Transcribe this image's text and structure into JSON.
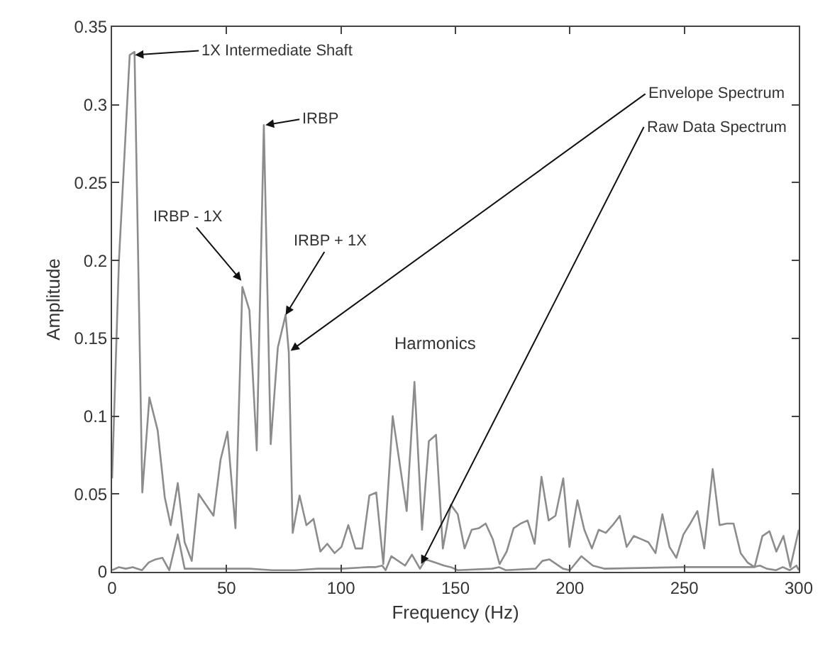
{
  "chart_data": {
    "type": "line",
    "xlabel": "Frequency (Hz)",
    "ylabel": "Amplitude",
    "series": [
      {
        "color": "#8c8c8c",
        "x": [
          0,
          3,
          7.7,
          9.8,
          13.2,
          16.3,
          19.9,
          23,
          25.6,
          28.7,
          31.7,
          34.8,
          37.8,
          44.3,
          47.4,
          50.4,
          53.9,
          56.9,
          60,
          63.2,
          66.3,
          69.3,
          72.4,
          75.8,
          77.2,
          78.9,
          81.9,
          84.9,
          88,
          91,
          94,
          97.2,
          100.2,
          103.2,
          106.3,
          109.3,
          112.4,
          115.4,
          118.5,
          122.6,
          128.7,
          132.1,
          135.4,
          138.4,
          141.5,
          144.5,
          148,
          151,
          154,
          157.1,
          160.2,
          163.2,
          166.3,
          169.3,
          172.4,
          175.4,
          178.5,
          181.5,
          184.6,
          187.6,
          190.7,
          193.7,
          197.1,
          199.8,
          203.3,
          206.3,
          209.6,
          212.6,
          215.7,
          218.7,
          221.8,
          224.8,
          227.9,
          231.1,
          234.3,
          237.4,
          240.4,
          243.5,
          246.5,
          249.6,
          252.6,
          255.7,
          258.7,
          262.4,
          265.4,
          268.5,
          271.5,
          274.6,
          277.6,
          280.7,
          284.1,
          287.2,
          290.2,
          293.3,
          296.3,
          300
        ],
        "values": [
          0.06,
          0.2,
          0.332,
          0.334,
          0.051,
          0.112,
          0.091,
          0.048,
          0.03,
          0.057,
          0.019,
          0.007,
          0.05,
          0.036,
          0.072,
          0.09,
          0.028,
          0.183,
          0.168,
          0.078,
          0.287,
          0.082,
          0.144,
          0.165,
          0.141,
          0.025,
          0.049,
          0.03,
          0.034,
          0.013,
          0.018,
          0.012,
          0.016,
          0.03,
          0.015,
          0.015,
          0.049,
          0.051,
          0.005,
          0.1,
          0.039,
          0.122,
          0.027,
          0.084,
          0.088,
          0.015,
          0.043,
          0.037,
          0.015,
          0.027,
          0.028,
          0.031,
          0.021,
          0.005,
          0.013,
          0.028,
          0.031,
          0.033,
          0.018,
          0.061,
          0.033,
          0.036,
          0.06,
          0.016,
          0.046,
          0.027,
          0.015,
          0.027,
          0.025,
          0.03,
          0.036,
          0.016,
          0.023,
          0.021,
          0.019,
          0.012,
          0.037,
          0.016,
          0.009,
          0.024,
          0.031,
          0.039,
          0.015,
          0.066,
          0.03,
          0.031,
          0.031,
          0.012,
          0.006,
          0.003,
          0.023,
          0.026,
          0.013,
          0.023,
          0.003,
          0.027
        ]
      },
      {
        "color": "#8c8c8c",
        "x": [
          0,
          3,
          6,
          9,
          13,
          16,
          19,
          22,
          25,
          28.7,
          31.7,
          35,
          50,
          60,
          70,
          80,
          90,
          100,
          112,
          115,
          118,
          119.5,
          122,
          128,
          131,
          134.5,
          137,
          141,
          145,
          148,
          151,
          166,
          169,
          172,
          185,
          188,
          191,
          197,
          200,
          205,
          210,
          215,
          250,
          280,
          283,
          286,
          290,
          293,
          296,
          299,
          300
        ],
        "values": [
          0.001,
          0.003,
          0.002,
          0.003,
          0.001,
          0.006,
          0.008,
          0.009,
          0.001,
          0.024,
          0.002,
          0.002,
          0.002,
          0.002,
          0.001,
          0.001,
          0.002,
          0.002,
          0.003,
          0.003,
          0.004,
          0.001,
          0.01,
          0.004,
          0.011,
          0.002,
          0.008,
          0.006,
          0.004,
          0.003,
          0.001,
          0.002,
          0.003,
          0.001,
          0.002,
          0.007,
          0.008,
          0.002,
          0.001,
          0.01,
          0.004,
          0.002,
          0.003,
          0.003,
          0.004,
          0.002,
          0.001,
          0.003,
          0.001,
          0.004,
          0.001
        ]
      }
    ],
    "annotations": [
      {
        "text": "1X Intermediate Shaft",
        "x": 10,
        "y": 0.332
      },
      {
        "text": "IRBP",
        "x": 67,
        "y": 0.287
      },
      {
        "text": "IRBP - 1X",
        "x": 56.5,
        "y": 0.187
      },
      {
        "text": "IRBP + 1X",
        "x": 75.8,
        "y": 0.165
      },
      "Harmonics",
      {
        "text": "Envelope Spectrum",
        "x": 78,
        "y": 0.142
      },
      {
        "text": "Raw Data Spectrum",
        "x": 135,
        "y": 0.005
      }
    ],
    "xlim": [
      0,
      300
    ],
    "xticks": [
      0,
      50,
      100,
      150,
      200,
      250,
      300
    ],
    "ylim": [
      0,
      0.35
    ],
    "yticks": [
      0,
      0.05,
      0.1,
      0.15,
      0.2,
      0.25,
      0.3,
      0.35
    ],
    "marker": "none",
    "line_style": "solid"
  }
}
